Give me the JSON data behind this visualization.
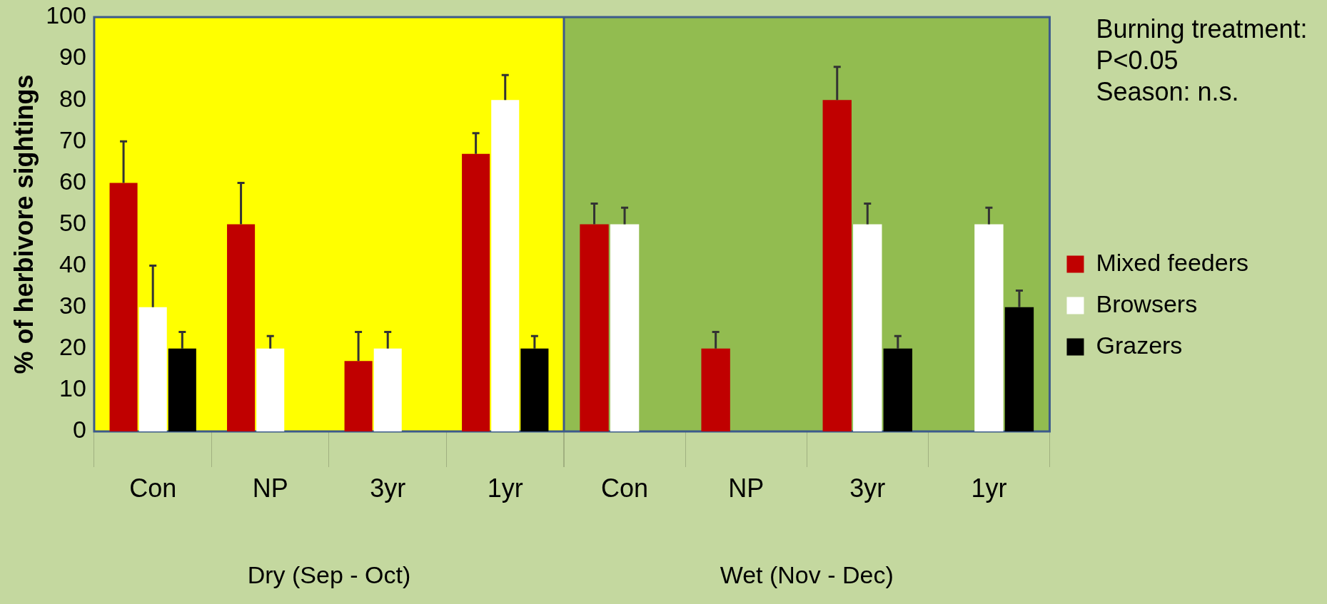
{
  "chart_data": [
    {
      "type": "bar",
      "ylabel": "% of herbivore sightings",
      "xlabel": "Dry (Sep - Oct)",
      "categories": [
        "Con",
        "NP",
        "3yr",
        "1yr"
      ],
      "series": [
        {
          "color": "#c00000",
          "values": [
            60,
            50,
            17,
            67
          ],
          "errors": [
            [
              60,
              70
            ],
            [
              50,
              60
            ],
            [
              17,
              24
            ],
            [
              67,
              72
            ]
          ]
        },
        {
          "color": "#ffffff",
          "values": [
            30,
            20,
            20,
            80
          ],
          "errors": [
            [
              30,
              40
            ],
            [
              20,
              23
            ],
            [
              20,
              24
            ],
            [
              80,
              86
            ]
          ]
        },
        {
          "color": "#000000",
          "values": [
            20,
            null,
            null,
            20
          ],
          "errors": [
            [
              20,
              24
            ],
            null,
            null,
            [
              20,
              23
            ]
          ]
        }
      ],
      "ylim": [
        0,
        100
      ],
      "yticks": [
        0,
        10,
        20,
        30,
        40,
        50,
        60,
        70,
        80,
        90,
        100
      ],
      "grid": false,
      "bands": [
        {
          "axis": "x",
          "from": "Con",
          "to": "1yr",
          "color": "#ffff00"
        }
      ]
    },
    {
      "type": "bar",
      "xlabel": "Wet (Nov - Dec)",
      "categories": [
        "Con",
        "NP",
        "3yr",
        "1yr"
      ],
      "series": [
        {
          "name": "Mixed feeders",
          "color": "#c00000",
          "values": [
            50,
            20,
            80,
            null
          ],
          "errors": [
            [
              50,
              55
            ],
            [
              20,
              24
            ],
            [
              80,
              88
            ],
            null
          ]
        },
        {
          "name": "Browsers",
          "color": "#ffffff",
          "values": [
            50,
            null,
            50,
            50
          ],
          "errors": [
            [
              50,
              54
            ],
            null,
            [
              50,
              55
            ],
            [
              50,
              54
            ]
          ]
        },
        {
          "name": "Grazers",
          "color": "#000000",
          "values": [
            null,
            null,
            20,
            30
          ],
          "errors": [
            null,
            null,
            [
              20,
              23
            ],
            [
              30,
              34
            ]
          ]
        }
      ],
      "ylim": [
        0,
        100
      ],
      "yticks": [
        0,
        10,
        20,
        30,
        40,
        50,
        60,
        70,
        80,
        90,
        100
      ],
      "grid": false,
      "tick_labels": "x",
      "legend": "right",
      "bands": [
        {
          "axis": "x",
          "from": "Con",
          "to": "1yr",
          "color": "#92bc50"
        }
      ],
      "annotations": [
        "Burning treatment:",
        "P<0.05",
        "Season: n.s."
      ]
    }
  ]
}
